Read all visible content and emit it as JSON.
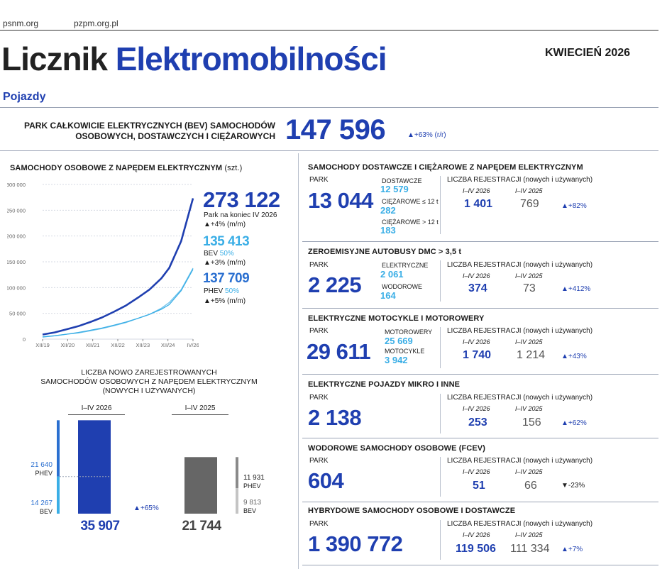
{
  "header": {
    "link1": "psnm.org",
    "link2": "pzpm.org.pl",
    "title_part1": "Licznik",
    "title_part2": "Elektromobilności",
    "date": "KWIECIEŃ 2026",
    "section": "Pojazdy"
  },
  "bev_park": {
    "label_line1": "PARK CAŁKOWICIE ELEKTRYCZNYCH (BEV) SAMOCHODÓW",
    "label_line2": "OSOBOWYCH, DOSTAWCZYCH I CIĘŻAROWYCH",
    "value": "147 596",
    "change": "▲+63% (r/r)"
  },
  "passenger": {
    "title": "SAMOCHODY OSOBOWE Z NAPĘDEM ELEKTRYCZNYM",
    "unit": "(szt.)",
    "total": "273 122",
    "total_label": "Park na koniec IV 2026",
    "total_change": "▲+4% (m/m)",
    "bev_value": "135 413",
    "bev_label": "BEV",
    "bev_share": "50%",
    "bev_change": "▲+3% (m/m)",
    "phev_value": "137 709",
    "phev_label": "PHEV",
    "phev_share": "50%",
    "phev_change": "▲+5% (m/m)"
  },
  "chart_data": [
    {
      "type": "line",
      "title": "SAMOCHODY OSOBOWE Z NAPĘDEM ELEKTRYCZNYM (szt.)",
      "x_ticks": [
        "XII/19",
        "XII/20",
        "XII/21",
        "XII/22",
        "XII/23",
        "XII/24",
        "IV/26"
      ],
      "y_ticks": [
        "0",
        "50 000",
        "100 000",
        "150 000",
        "200 000",
        "250 000",
        "300 000"
      ],
      "ylim": [
        0,
        300000
      ],
      "x": [
        0,
        6,
        12,
        18,
        24,
        30,
        36,
        42,
        48,
        54,
        60,
        64,
        70,
        76
      ],
      "series": [
        {
          "name": "Park",
          "color": "#1f3fb0",
          "values": [
            9000,
            13000,
            19000,
            25000,
            33000,
            42000,
            53000,
            65000,
            80000,
            96000,
            118000,
            138000,
            190000,
            273122
          ]
        },
        {
          "name": "BEV",
          "color": "#3aaee6",
          "values": [
            4000,
            6500,
            9500,
            13000,
            17000,
            21500,
            27000,
            33000,
            40000,
            48000,
            58000,
            67000,
            94000,
            135413
          ]
        },
        {
          "name": "PHEV",
          "color": "#3aaee6",
          "values": [
            5000,
            6500,
            9500,
            12000,
            16000,
            20500,
            26000,
            32000,
            40000,
            48000,
            60000,
            71000,
            96000,
            137709
          ]
        }
      ]
    },
    {
      "type": "bar",
      "title_line1": "LICZBA NOWO ZAREJESTROWANYCH",
      "title_line2": "SAMOCHODÓW OSOBOWYCH Z NAPĘDEM ELEKTRYCZNYM",
      "title_line3": "(NOWYCH I UŻYWANYCH)",
      "categories": [
        "I–IV 2026",
        "I–IV 2025"
      ],
      "totals": [
        "35 907",
        "21 744"
      ],
      "total_values": [
        35907,
        21744
      ],
      "ylim": [
        0,
        36000
      ],
      "series": [
        {
          "name": "BEV",
          "values": [
            14267,
            9813
          ],
          "labels": [
            "14 267",
            "9 813"
          ]
        },
        {
          "name": "PHEV",
          "values": [
            21640,
            11931
          ],
          "labels": [
            "21 640",
            "11 931"
          ]
        }
      ],
      "change": "▲+65%"
    }
  ],
  "vans": {
    "title": "SAMOCHODY DOSTAWCZE I CIĘŻAROWE Z NAPĘDEM ELEKTRYCZNYM",
    "park_label": "PARK",
    "park": "13 044",
    "sub1_label": "DOSTAWCZE",
    "sub1": "12 579",
    "sub2_label": "CIĘŻAROWE ≤ 12 t",
    "sub2": "282",
    "sub3_label": "CIĘŻAROWE > 12 t",
    "sub3": "183",
    "reg_label": "LICZBA REJESTRACJI (nowych i używanych)",
    "y1": "I–IV 2026",
    "y2": "I–IV 2025",
    "v1": "1 401",
    "v2": "769",
    "change": "▲+82%"
  },
  "buses": {
    "title": "ZEROEMISYJNE AUTOBUSY DMC > 3,5 t",
    "park_label": "PARK",
    "park": "2 225",
    "sub1_label": "ELEKTRYCZNE",
    "sub1": "2 061",
    "sub2_label": "WODOROWE",
    "sub2": "164",
    "reg_label": "LICZBA REJESTRACJI (nowych i używanych)",
    "y1": "I–IV 2026",
    "y2": "I–IV 2025",
    "v1": "374",
    "v2": "73",
    "change": "▲+412%"
  },
  "moto": {
    "title": "ELEKTRYCZNE MOTOCYKLE I MOTOROWERY",
    "park_label": "PARK",
    "park": "29 611",
    "sub1_label": "MOTOROWERY",
    "sub1": "25 669",
    "sub2_label": "MOTOCYKLE",
    "sub2": "3 942",
    "reg_label": "LICZBA REJESTRACJI (nowych i używanych)",
    "y1": "I–IV 2026",
    "y2": "I–IV 2025",
    "v1": "1 740",
    "v2": "1 214",
    "change": "▲+43%"
  },
  "micro": {
    "title": "ELEKTRYCZNE POJAZDY MIKRO I INNE",
    "park_label": "PARK",
    "park": "2 138",
    "reg_label": "LICZBA REJESTRACJI (nowych i używanych)",
    "y1": "I–IV 2026",
    "y2": "I–IV 2025",
    "v1": "253",
    "v2": "156",
    "change": "▲+62%"
  },
  "fcev": {
    "title": "WODOROWE SAMOCHODY OSOBOWE (FCEV)",
    "park_label": "PARK",
    "park": "604",
    "reg_label": "LICZBA REJESTRACJI (nowych i używanych)",
    "y1": "I–IV 2026",
    "y2": "I–IV 2025",
    "v1": "51",
    "v2": "66",
    "change": "▼-23%"
  },
  "hybrid": {
    "title": "HYBRYDOWE SAMOCHODY OSOBOWE I DOSTAWCZE",
    "park_label": "PARK",
    "park": "1 390 772",
    "reg_label": "LICZBA REJESTRACJI (nowych i używanych)",
    "y1": "I–IV 2026",
    "y2": "I–IV 2025",
    "v1": "119 506",
    "v2": "111 334",
    "change": "▲+7%"
  }
}
